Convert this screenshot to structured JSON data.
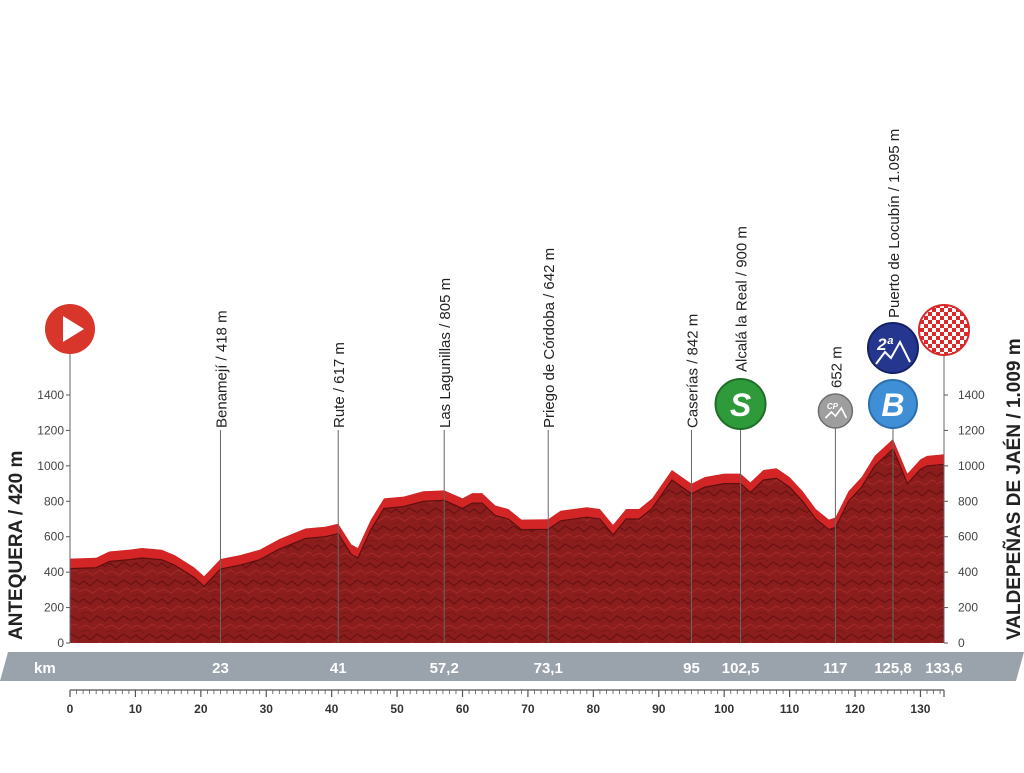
{
  "chart_data": {
    "type": "area",
    "title": "",
    "xlabel": "",
    "ylabel": "",
    "xlim": [
      0,
      133.6
    ],
    "ylim": [
      0,
      1400
    ],
    "y_ticks": [
      0,
      200,
      400,
      600,
      800,
      1000,
      1200,
      1400
    ],
    "x_ticks": [
      0,
      10,
      20,
      30,
      40,
      50,
      60,
      70,
      80,
      90,
      100,
      110,
      120,
      130
    ],
    "km_label": "km",
    "start_label": "ANTEQUERA / 420 m",
    "finish_label": "VALDEPEÑAS DE JAÉN / 1.009 m",
    "colors": {
      "profile_fill": "#8b1d1d",
      "profile_top": "#d32525",
      "km_bar": "#9aa3ab",
      "axis": "#555555",
      "start_marker": "#d9362b",
      "sprint_marker": "#2f9a3a",
      "bonus_marker": "#3f8fd6",
      "kom_marker": "#25368f",
      "cp_marker": "#9e9e9e"
    },
    "profile": [
      {
        "x": 0,
        "y": 420
      },
      {
        "x": 4,
        "y": 425
      },
      {
        "x": 6,
        "y": 460
      },
      {
        "x": 9,
        "y": 470
      },
      {
        "x": 11,
        "y": 480
      },
      {
        "x": 14,
        "y": 470
      },
      {
        "x": 16,
        "y": 440
      },
      {
        "x": 19,
        "y": 370
      },
      {
        "x": 20.5,
        "y": 320
      },
      {
        "x": 23,
        "y": 418
      },
      {
        "x": 26,
        "y": 440
      },
      {
        "x": 29,
        "y": 470
      },
      {
        "x": 32,
        "y": 530
      },
      {
        "x": 36,
        "y": 590
      },
      {
        "x": 39,
        "y": 600
      },
      {
        "x": 41,
        "y": 617
      },
      {
        "x": 43,
        "y": 500
      },
      {
        "x": 44,
        "y": 480
      },
      {
        "x": 46,
        "y": 640
      },
      {
        "x": 48,
        "y": 760
      },
      {
        "x": 51,
        "y": 770
      },
      {
        "x": 54,
        "y": 800
      },
      {
        "x": 57.2,
        "y": 805
      },
      {
        "x": 60,
        "y": 760
      },
      {
        "x": 61.5,
        "y": 790
      },
      {
        "x": 63,
        "y": 790
      },
      {
        "x": 65,
        "y": 720
      },
      {
        "x": 67,
        "y": 700
      },
      {
        "x": 69,
        "y": 640
      },
      {
        "x": 73.1,
        "y": 642
      },
      {
        "x": 75,
        "y": 690
      },
      {
        "x": 79,
        "y": 710
      },
      {
        "x": 81,
        "y": 700
      },
      {
        "x": 83,
        "y": 610
      },
      {
        "x": 85,
        "y": 700
      },
      {
        "x": 87,
        "y": 700
      },
      {
        "x": 89,
        "y": 760
      },
      {
        "x": 92,
        "y": 920
      },
      {
        "x": 95,
        "y": 842
      },
      {
        "x": 97,
        "y": 880
      },
      {
        "x": 100,
        "y": 900
      },
      {
        "x": 102.5,
        "y": 900
      },
      {
        "x": 104,
        "y": 850
      },
      {
        "x": 106,
        "y": 920
      },
      {
        "x": 108,
        "y": 930
      },
      {
        "x": 110,
        "y": 880
      },
      {
        "x": 112,
        "y": 800
      },
      {
        "x": 114,
        "y": 700
      },
      {
        "x": 116,
        "y": 640
      },
      {
        "x": 117,
        "y": 652
      },
      {
        "x": 119,
        "y": 800
      },
      {
        "x": 121,
        "y": 880
      },
      {
        "x": 123,
        "y": 1000
      },
      {
        "x": 125.8,
        "y": 1095
      },
      {
        "x": 128,
        "y": 900
      },
      {
        "x": 130,
        "y": 980
      },
      {
        "x": 131,
        "y": 1000
      },
      {
        "x": 133.6,
        "y": 1009
      }
    ],
    "points": [
      {
        "km": 23,
        "km_label": "23",
        "name": "Benamejí / 418 m"
      },
      {
        "km": 41,
        "km_label": "41",
        "name": "Rute / 617 m"
      },
      {
        "km": 57.2,
        "km_label": "57,2",
        "name": "Las Lagunillas / 805 m"
      },
      {
        "km": 73.1,
        "km_label": "73,1",
        "name": "Priego de Córdoba / 642 m"
      },
      {
        "km": 95,
        "km_label": "95",
        "name": "Caserías / 842 m"
      },
      {
        "km": 102.5,
        "km_label": "102,5",
        "name": "Alcalá la Real / 900 m",
        "marker": "sprint",
        "marker_text": "S"
      },
      {
        "km": 117,
        "km_label": "117",
        "name": "652 m",
        "marker": "cp",
        "marker_text": "CP"
      },
      {
        "km": 125.8,
        "km_label": "125,8",
        "name": "Puerto de Locubín / 1.095 m",
        "marker": "bonus",
        "marker_text": "B",
        "kom_text": "2ª"
      },
      {
        "km": 133.6,
        "km_label": "133,6",
        "name": "",
        "marker": "finish"
      }
    ]
  }
}
